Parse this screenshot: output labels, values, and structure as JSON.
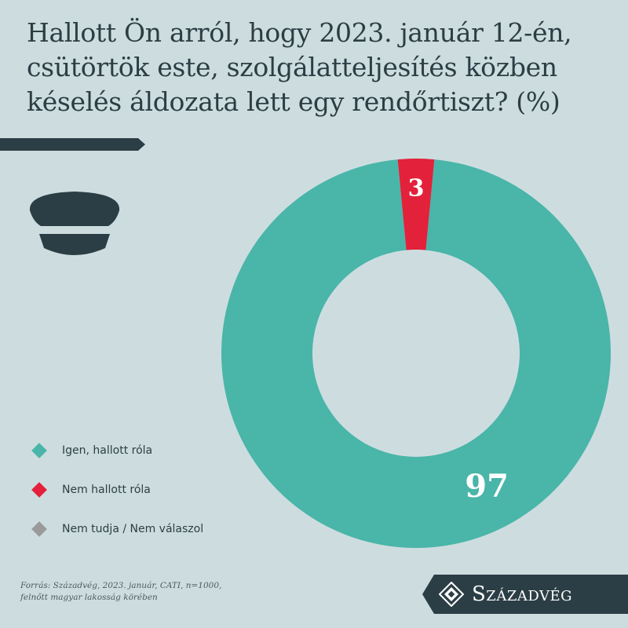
{
  "title": "Hallott Ön arról, hogy 2023. január 12-én, csütörtök este, szolgálatteljesítés közben késelés áldozata lett egy rendőrtiszt? (%)",
  "icons": {
    "decoration": "police-cap-icon",
    "legend_marker": "diamond-icon",
    "brand_logo": "diamond-ornament-icon"
  },
  "colors": {
    "background": "#cddddf",
    "dark": "#2c3e45",
    "yes": "#4ab5a9",
    "no": "#e3213a",
    "unknown": "#9a9a9a"
  },
  "chart_data": {
    "type": "pie",
    "donut": true,
    "title": "Hallott Ön arról, hogy 2023. január 12-én, csütörtök este, szolgálatteljesítés közben késelés áldozata lett egy rendőrtiszt? (%)",
    "unit": "%",
    "slices": [
      {
        "label": "Igen, hallott róla",
        "value": 97,
        "color": "#4ab5a9"
      },
      {
        "label": "Nem hallott róla",
        "value": 3,
        "color": "#e3213a"
      },
      {
        "label": "Nem tudja / Nem válaszol",
        "value": 0,
        "color": "#9a9a9a"
      }
    ],
    "legend_position": "bottom-left"
  },
  "legend": [
    {
      "label": "Igen, hallott róla",
      "color": "#4ab5a9"
    },
    {
      "label": "Nem hallott róla",
      "color": "#e3213a"
    },
    {
      "label": "Nem tudja / Nem válaszol",
      "color": "#9a9a9a"
    }
  ],
  "source_note": {
    "line1": "Forrás: Századvég, 2023. január, CATI, n=1000,",
    "line2": "felnőtt magyar lakosság körében"
  },
  "brand": {
    "name": "Századvég"
  }
}
